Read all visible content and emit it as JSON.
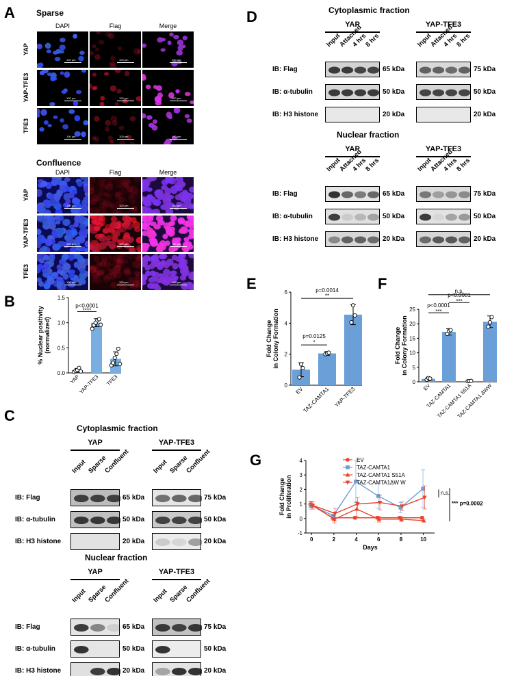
{
  "panels": {
    "A": "A",
    "B": "B",
    "C": "C",
    "D": "D",
    "E": "E",
    "F": "F",
    "G": "G"
  },
  "panelA": {
    "sparse_title": "Sparse",
    "confluence_title": "Confluence",
    "columns": [
      "DAPI",
      "Flag",
      "Merge"
    ],
    "rows": [
      "YAP",
      "YAP-TFE3",
      "TFE3"
    ],
    "scalebar": "100 µm"
  },
  "panelB": {
    "ylabel_line1": "% Nuclear positivity",
    "ylabel_line2": "(normalized)",
    "p_text": "p<0.0001",
    "stars": "****",
    "yticks": [
      "0.0",
      "0.5",
      "1.0",
      "1.5"
    ]
  },
  "panelC": {
    "cyto_title": "Cytoplasmic fraction",
    "nuc_title": "Nuclear fraction",
    "group1": "YAP",
    "group2": "YAP-TFE3",
    "lanes": [
      "Input",
      "Sparse",
      "Confluent"
    ],
    "ib": [
      "IB: Flag",
      "IB: α-tubulin",
      "IB: H3 histone"
    ],
    "kda_left": [
      "65 kDa",
      "50 kDa",
      "20 kDa"
    ],
    "kda_right": [
      "75 kDa",
      "50 kDa",
      "20 kDa"
    ]
  },
  "panelD": {
    "cyto_title": "Cytoplasmic fraction",
    "nuc_title": "Nuclear fraction",
    "group1": "YAP",
    "group2": "YAP-TFE3",
    "lanes": [
      "Input",
      "Attached",
      "4 hrs",
      "8 hrs"
    ],
    "ib": [
      "IB: Flag",
      "IB: α-tubulin",
      "IB: H3 histone"
    ],
    "kda_left": [
      "65 kDa",
      "50 kDa",
      "20 kDa"
    ],
    "kda_right": [
      "75 kDa",
      "50 kDa",
      "20 kDa"
    ]
  },
  "panelE": {
    "ylabel_line1": "Fold Change",
    "ylabel_line2": "in Colony Formation",
    "p1": "p=0.0014",
    "s1": "**",
    "p2": "p=0.0125",
    "s2": "*",
    "yticks": [
      "0",
      "2",
      "4",
      "6"
    ]
  },
  "panelF": {
    "ylabel_line1": "Fold Change",
    "ylabel_line2": "in Colony Formation",
    "ns": "n.s.",
    "p1": "p<0.0001",
    "s1": "***",
    "p2": "p<0.0001",
    "s2": "***",
    "yticks": [
      "0",
      "5",
      "10",
      "15",
      "20",
      "25"
    ]
  },
  "panelG": {
    "ylabel_line1": "Fold Change",
    "ylabel_line2": "in Proliferation",
    "xlabel": "Days",
    "ns": "n.s.",
    "pval": "*** p=0.0002",
    "yticks": [
      "-1",
      "0",
      "1",
      "2",
      "3",
      "4"
    ],
    "xticks": [
      "0",
      "2",
      "4",
      "6",
      "8",
      "10"
    ]
  },
  "chart_data": [
    {
      "type": "bar",
      "panel": "B",
      "categories": [
        "YAP",
        "YAP-TFE3",
        "TFE3"
      ],
      "values": [
        0.05,
        1.0,
        0.28
      ],
      "errors": [
        0.04,
        0.08,
        0.14
      ],
      "points": [
        [
          0.02,
          0.04,
          0.06,
          0.1,
          0.03
        ],
        [
          0.88,
          0.95,
          1.0,
          1.05,
          1.07,
          0.96
        ],
        [
          0.15,
          0.2,
          0.3,
          0.38,
          0.48,
          0.18
        ]
      ],
      "ylim": [
        0,
        1.5
      ],
      "color": "#7aaee0"
    },
    {
      "type": "bar",
      "panel": "E",
      "categories": [
        "EV",
        "TAZ-CAMTA1",
        "YAP-TFE3"
      ],
      "values": [
        1.0,
        2.05,
        4.55
      ],
      "errors": [
        0.45,
        0.12,
        0.65
      ],
      "points": [
        [
          0.5,
          1.35,
          1.1
        ],
        [
          2.0,
          2.05,
          2.1
        ],
        [
          4.05,
          5.15,
          4.5
        ]
      ],
      "ylim": [
        0,
        6
      ],
      "color": "#6a9fd8"
    },
    {
      "type": "bar",
      "panel": "F",
      "categories": [
        "EV",
        "TAZ-CAMTA1",
        "TAZ-CAMTA1 S51A",
        "TAZ-CAMTA1 ΔWW"
      ],
      "values": [
        1.0,
        17.2,
        0.25,
        20.7
      ],
      "errors": [
        0.6,
        1.1,
        0.15,
        2.0
      ],
      "points": [
        [
          0.7,
          1.3,
          1.1
        ],
        [
          16.5,
          17.5,
          17.8
        ],
        [
          0.2,
          0.25,
          0.3
        ],
        [
          19.0,
          20.5,
          22.3
        ]
      ],
      "ylim": [
        0,
        25
      ],
      "color": "#6a9fd8"
    },
    {
      "type": "line",
      "panel": "G",
      "x": [
        0,
        2,
        4,
        6,
        8,
        10
      ],
      "series": [
        {
          "name": "EV",
          "values": [
            0.98,
            0.05,
            0.05,
            0.05,
            0.05,
            0.05
          ],
          "errors": [
            0.2,
            0.15,
            0.1,
            0.1,
            0.1,
            0.1
          ],
          "color": "#e8432e",
          "marker": "circle"
        },
        {
          "name": "TAZ-CAMTA1",
          "values": [
            0.9,
            0.2,
            2.55,
            1.55,
            0.75,
            2.05
          ],
          "errors": [
            0.25,
            0.2,
            1.45,
            0.85,
            0.35,
            1.3
          ],
          "color": "#6a9fd8",
          "marker": "square"
        },
        {
          "name": "TAZ-CAMTA1 S51A",
          "values": [
            0.95,
            -0.05,
            0.65,
            -0.05,
            -0.05,
            -0.15
          ],
          "errors": [
            0.2,
            0.25,
            0.5,
            0.2,
            0.15,
            0.1
          ],
          "color": "#e8432e",
          "marker": "triangle-up"
        },
        {
          "name": "TAZ-CAMTA1ΔW W",
          "values": [
            0.9,
            0.35,
            1.0,
            1.1,
            0.85,
            1.45
          ],
          "errors": [
            0.25,
            0.35,
            0.45,
            0.5,
            0.3,
            0.8
          ],
          "color": "#e8432e",
          "marker": "triangle-down"
        }
      ],
      "xlabel": "Days",
      "ylabel": "Fold Change in Proliferation",
      "ylim": [
        -1,
        4
      ],
      "xlim": [
        -0.5,
        11
      ],
      "legend": "top"
    }
  ]
}
